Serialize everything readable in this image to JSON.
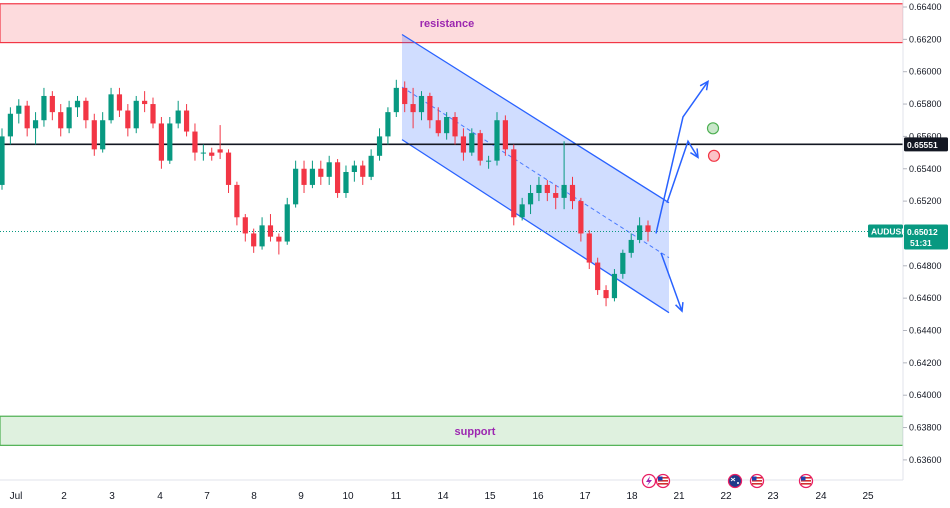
{
  "chart_data": {
    "type": "candlestick",
    "symbol": "AUDUSD",
    "price_axis": {
      "ticks": [
        "0.66400",
        "0.66200",
        "0.66000",
        "0.65800",
        "0.65600",
        "0.65400",
        "0.65200",
        "0.65000",
        "0.64800",
        "0.64600",
        "0.64400",
        "0.64200",
        "0.64000",
        "0.63800",
        "0.63600"
      ],
      "range": [
        0.635,
        0.6642
      ]
    },
    "time_axis": {
      "ticks": [
        "Jul",
        "2",
        "3",
        "4",
        "7",
        "8",
        "9",
        "10",
        "11",
        "14",
        "15",
        "16",
        "17",
        "18",
        "21",
        "22",
        "23",
        "24",
        "25"
      ]
    },
    "zones": {
      "resistance": {
        "label": "resistance",
        "low": 0.6618,
        "high": 0.6642,
        "color": "#f23645"
      },
      "support": {
        "label": "support",
        "low": 0.6369,
        "high": 0.6387,
        "color": "#4caf50"
      }
    },
    "key_level": {
      "price": 0.65551,
      "label": "0.65551"
    },
    "current_price": {
      "symbol": "AUDUSD",
      "price": "0.65012",
      "countdown": "51:31",
      "value": 0.65012,
      "color": "#089981"
    },
    "channel": {
      "color": "#2962ff",
      "upper": [
        [
          "11",
          0.6623
        ],
        [
          "18",
          0.6519
        ]
      ],
      "lower": [
        [
          "11",
          0.6558
        ],
        [
          "18",
          0.6451
        ]
      ]
    },
    "scenarios": [
      {
        "name": "bullish",
        "path": [
          0.65,
          0.6572,
          0.6594
        ]
      },
      {
        "name": "bearish",
        "path": [
          0.6488,
          0.6452
        ]
      },
      {
        "name": "retest",
        "path": [
          0.6519,
          0.6557,
          0.6547
        ]
      }
    ],
    "markers": [
      {
        "name": "green-circle",
        "price": 0.6565,
        "color": "#4caf50"
      },
      {
        "name": "red-circle",
        "price": 0.6548,
        "color": "#f23645"
      }
    ],
    "candles_ohlc": [
      [
        0.653,
        0.6565,
        0.6527,
        0.656
      ],
      [
        0.656,
        0.6578,
        0.6555,
        0.6574
      ],
      [
        0.6574,
        0.6583,
        0.6568,
        0.6579
      ],
      [
        0.6579,
        0.6582,
        0.656,
        0.6565
      ],
      [
        0.6565,
        0.6575,
        0.6555,
        0.657
      ],
      [
        0.657,
        0.659,
        0.6566,
        0.6585
      ],
      [
        0.6585,
        0.6588,
        0.657,
        0.6575
      ],
      [
        0.6575,
        0.658,
        0.656,
        0.6565
      ],
      [
        0.6565,
        0.6582,
        0.6562,
        0.6578
      ],
      [
        0.6578,
        0.6585,
        0.6572,
        0.6582
      ],
      [
        0.6582,
        0.6584,
        0.6565,
        0.657
      ],
      [
        0.657,
        0.6574,
        0.6548,
        0.6552
      ],
      [
        0.6552,
        0.6575,
        0.655,
        0.657
      ],
      [
        0.657,
        0.659,
        0.6568,
        0.6586
      ],
      [
        0.6586,
        0.659,
        0.6572,
        0.6576
      ],
      [
        0.6576,
        0.658,
        0.656,
        0.6565
      ],
      [
        0.6565,
        0.6585,
        0.6562,
        0.6582
      ],
      [
        0.6582,
        0.6588,
        0.6575,
        0.658
      ],
      [
        0.658,
        0.6584,
        0.6565,
        0.6568
      ],
      [
        0.6568,
        0.6572,
        0.654,
        0.6545
      ],
      [
        0.6545,
        0.6572,
        0.6543,
        0.6568
      ],
      [
        0.6568,
        0.6582,
        0.6565,
        0.6576
      ],
      [
        0.6576,
        0.658,
        0.656,
        0.6563
      ],
      [
        0.6563,
        0.6568,
        0.6545,
        0.655
      ],
      [
        0.655,
        0.6555,
        0.6545,
        0.655
      ],
      [
        0.655,
        0.6553,
        0.6545,
        0.6548
      ],
      [
        0.6552,
        0.6567,
        0.6546,
        0.655
      ],
      [
        0.655,
        0.6552,
        0.6525,
        0.653
      ],
      [
        0.653,
        0.6532,
        0.6505,
        0.651
      ],
      [
        0.651,
        0.6512,
        0.6495,
        0.65
      ],
      [
        0.65,
        0.6503,
        0.6488,
        0.6492
      ],
      [
        0.6492,
        0.651,
        0.649,
        0.6505
      ],
      [
        0.6505,
        0.6512,
        0.6495,
        0.6498
      ],
      [
        0.6498,
        0.65,
        0.6487,
        0.6495
      ],
      [
        0.6495,
        0.6522,
        0.6493,
        0.6518
      ],
      [
        0.6518,
        0.6545,
        0.6516,
        0.654
      ],
      [
        0.654,
        0.6545,
        0.6525,
        0.653
      ],
      [
        0.653,
        0.6545,
        0.6528,
        0.654
      ],
      [
        0.654,
        0.6545,
        0.653,
        0.6535
      ],
      [
        0.6535,
        0.6548,
        0.653,
        0.6544
      ],
      [
        0.6544,
        0.6546,
        0.6522,
        0.6525
      ],
      [
        0.6525,
        0.6542,
        0.6522,
        0.6538
      ],
      [
        0.6538,
        0.6545,
        0.6532,
        0.6542
      ],
      [
        0.6542,
        0.6545,
        0.653,
        0.6535
      ],
      [
        0.6535,
        0.6552,
        0.6533,
        0.6548
      ],
      [
        0.6548,
        0.6565,
        0.6545,
        0.656
      ],
      [
        0.656,
        0.6578,
        0.6555,
        0.6575
      ],
      [
        0.6575,
        0.6595,
        0.6572,
        0.659
      ],
      [
        0.659,
        0.6594,
        0.6575,
        0.658
      ],
      [
        0.658,
        0.659,
        0.6565,
        0.6575
      ],
      [
        0.6575,
        0.6588,
        0.657,
        0.6585
      ],
      [
        0.6585,
        0.6587,
        0.6565,
        0.657
      ],
      [
        0.657,
        0.6578,
        0.656,
        0.6562
      ],
      [
        0.6562,
        0.6575,
        0.6558,
        0.6572
      ],
      [
        0.6572,
        0.6575,
        0.6555,
        0.656
      ],
      [
        0.656,
        0.6565,
        0.6545,
        0.655
      ],
      [
        0.655,
        0.6565,
        0.6548,
        0.6562
      ],
      [
        0.6562,
        0.6564,
        0.6542,
        0.6545
      ],
      [
        0.6545,
        0.6548,
        0.654,
        0.6545
      ],
      [
        0.6545,
        0.6575,
        0.6542,
        0.657
      ],
      [
        0.657,
        0.6573,
        0.6548,
        0.6552
      ],
      [
        0.6552,
        0.6555,
        0.6505,
        0.651
      ],
      [
        0.651,
        0.6522,
        0.6508,
        0.6518
      ],
      [
        0.6518,
        0.653,
        0.6512,
        0.6525
      ],
      [
        0.6525,
        0.6535,
        0.652,
        0.653
      ],
      [
        0.653,
        0.6533,
        0.652,
        0.6525
      ],
      [
        0.6525,
        0.653,
        0.6515,
        0.6522
      ],
      [
        0.6522,
        0.6557,
        0.6515,
        0.653
      ],
      [
        0.653,
        0.6535,
        0.6515,
        0.652
      ],
      [
        0.652,
        0.6522,
        0.6495,
        0.65
      ],
      [
        0.65,
        0.6502,
        0.6478,
        0.6482
      ],
      [
        0.6482,
        0.6485,
        0.6462,
        0.6465
      ],
      [
        0.6465,
        0.6468,
        0.6455,
        0.646
      ],
      [
        0.646,
        0.6478,
        0.6458,
        0.6475
      ],
      [
        0.6475,
        0.649,
        0.6472,
        0.6488
      ],
      [
        0.6488,
        0.65,
        0.6485,
        0.6496
      ],
      [
        0.6496,
        0.651,
        0.6494,
        0.6505
      ],
      [
        0.6505,
        0.6508,
        0.6495,
        0.6501
      ]
    ]
  },
  "timeframe_note": ""
}
